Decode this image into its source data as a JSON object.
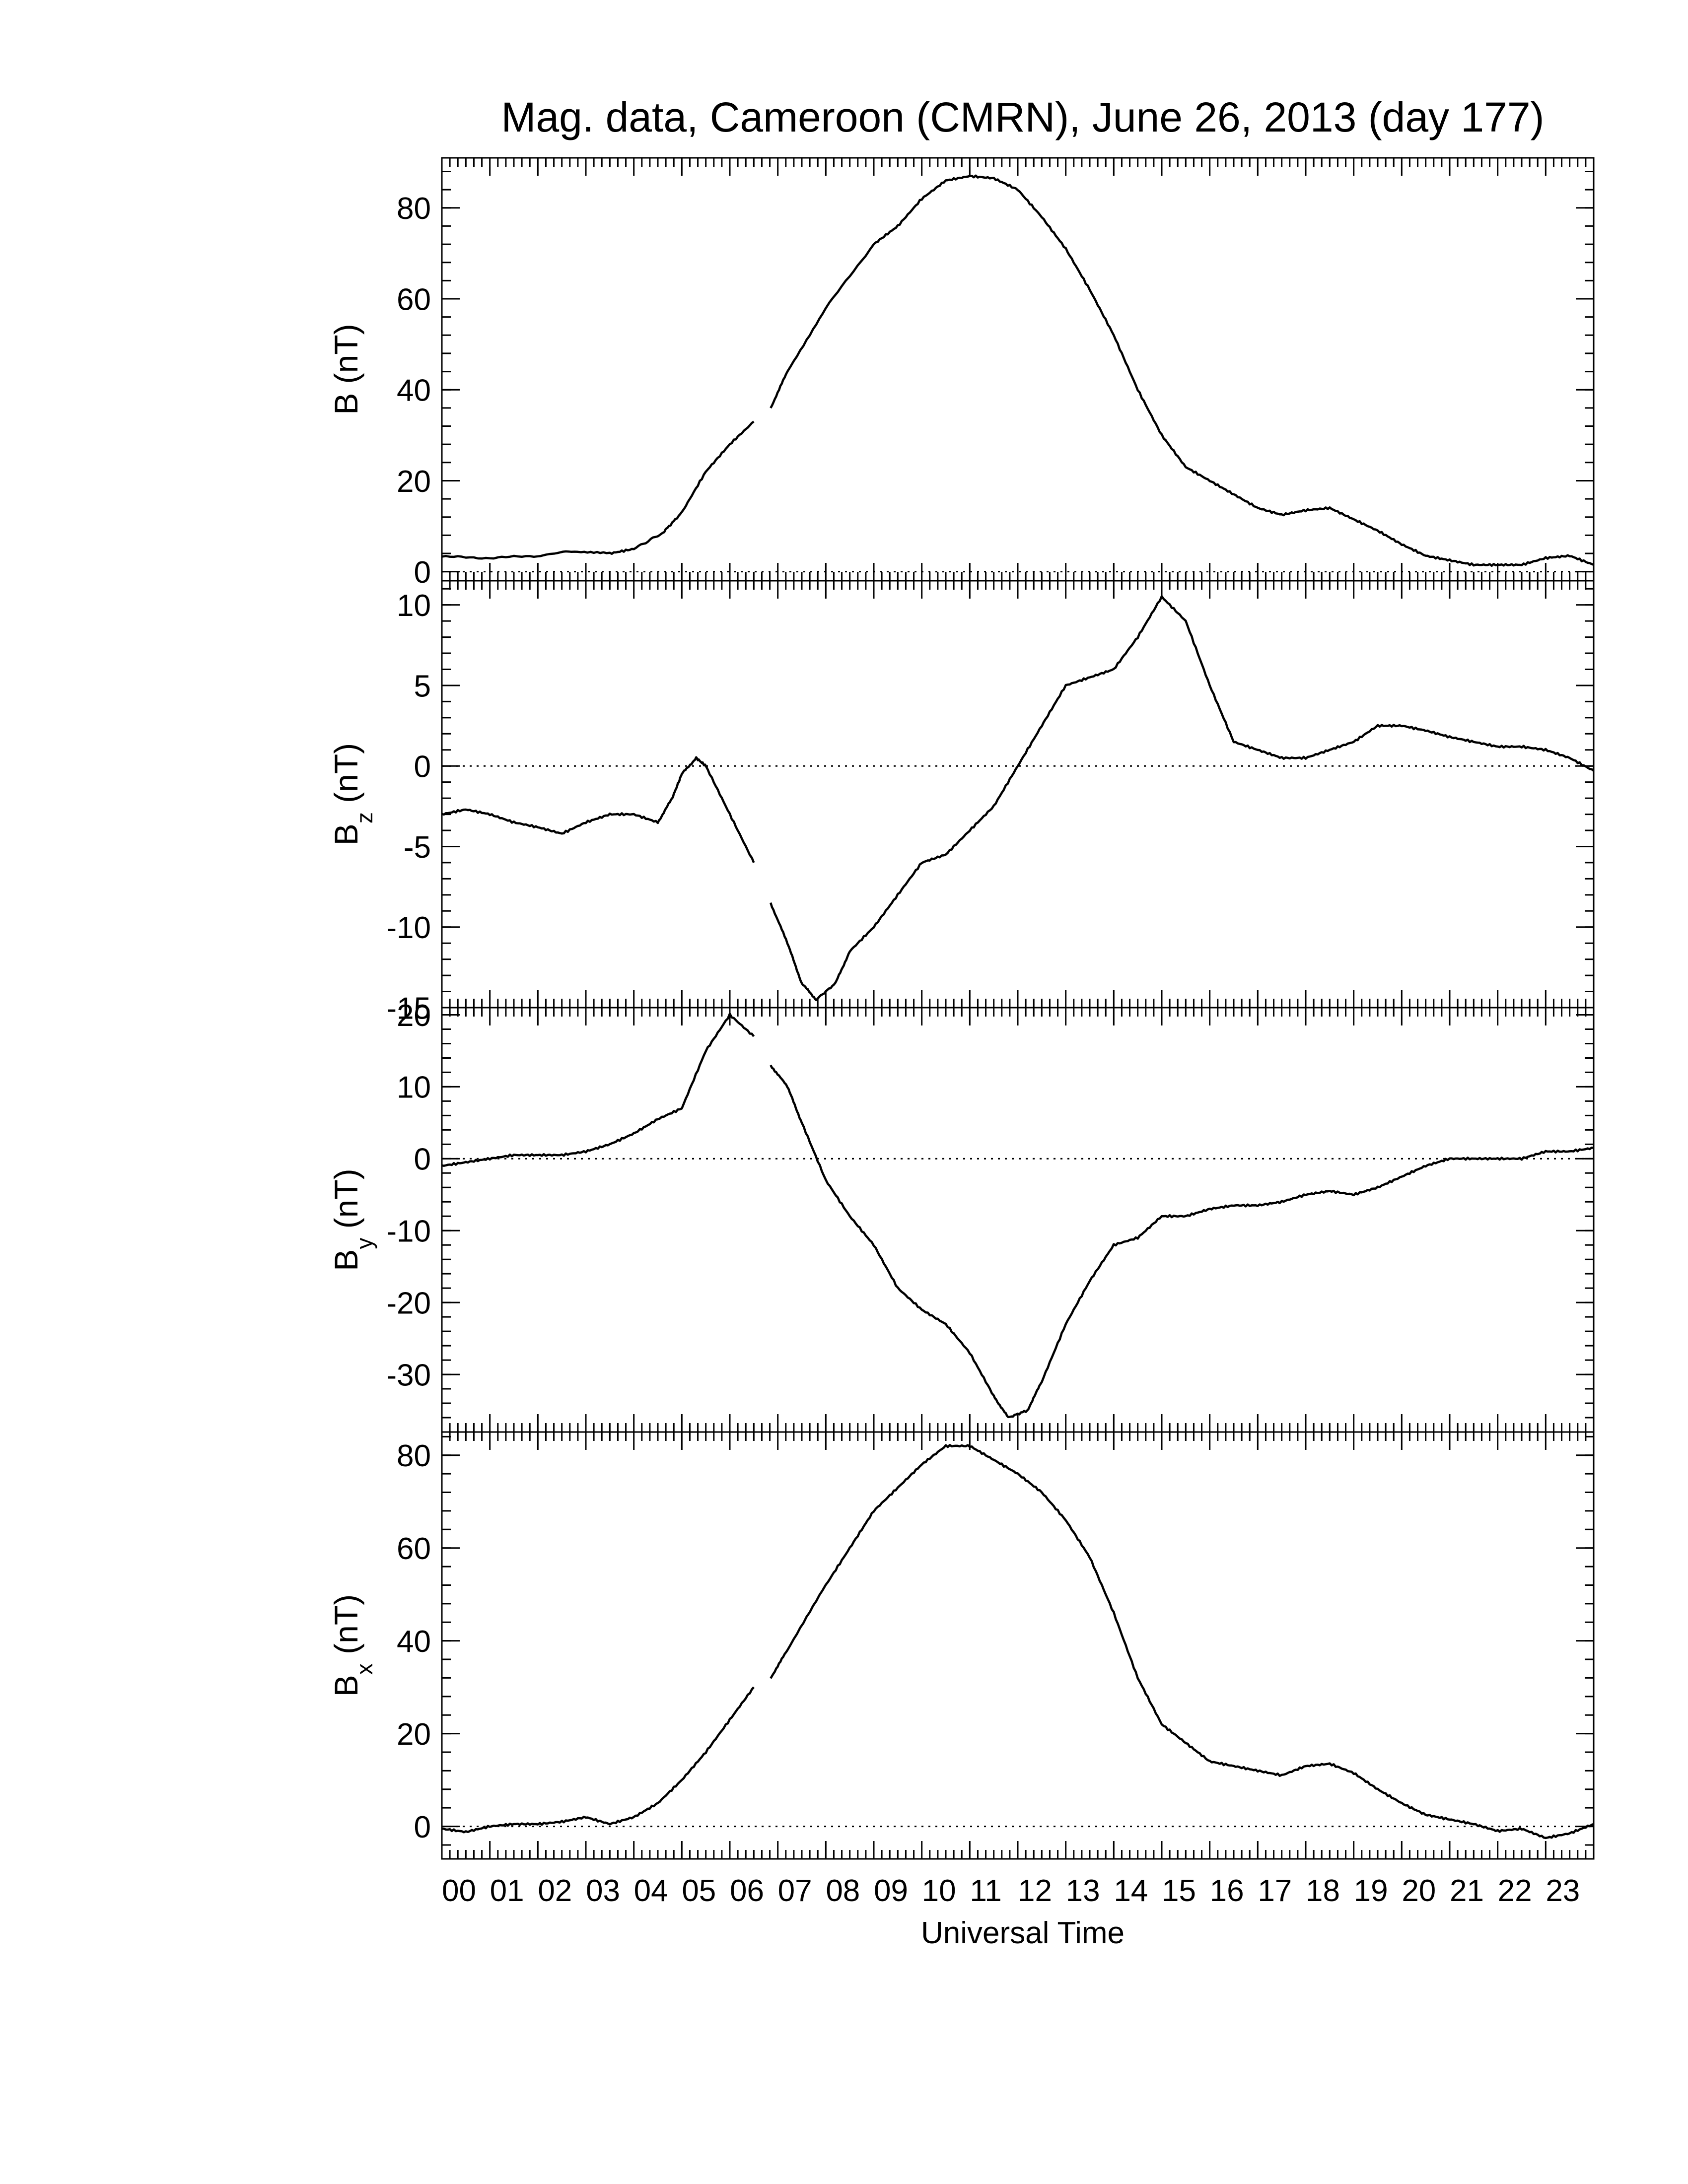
{
  "title": "Mag. data, Cameroon (CMRN), June 26, 2013 (day 177)",
  "xlabel": "Universal Time",
  "x_tick_labels": [
    "00",
    "01",
    "02",
    "03",
    "04",
    "05",
    "06",
    "07",
    "08",
    "09",
    "10",
    "11",
    "12",
    "13",
    "14",
    "15",
    "16",
    "17",
    "18",
    "19",
    "20",
    "21",
    "22",
    "23"
  ],
  "chart_data": [
    {
      "type": "line",
      "panel": "B",
      "ylabel": "B (nT)",
      "ylim": [
        -2,
        91
      ],
      "yticks": [
        0,
        20,
        40,
        60,
        80
      ],
      "ytick_labels": [
        "0",
        "20",
        "40",
        "60",
        "80"
      ],
      "xlim": [
        0,
        24
      ],
      "zero_line": true,
      "gap": [
        6.5,
        6.85
      ],
      "points": [
        [
          0,
          3.3
        ],
        [
          1,
          3
        ],
        [
          2,
          3.5
        ],
        [
          2.7,
          4.5
        ],
        [
          3.5,
          4
        ],
        [
          4,
          5
        ],
        [
          4.6,
          8.5
        ],
        [
          5,
          13
        ],
        [
          5.5,
          22
        ],
        [
          6,
          28
        ],
        [
          6.5,
          33
        ],
        [
          6.85,
          36
        ],
        [
          7.2,
          44
        ],
        [
          8,
          58
        ],
        [
          9,
          72
        ],
        [
          9.5,
          76
        ],
        [
          10,
          82
        ],
        [
          10.5,
          86
        ],
        [
          11,
          87
        ],
        [
          11.5,
          86.5
        ],
        [
          12,
          84
        ],
        [
          12.5,
          78
        ],
        [
          13,
          71
        ],
        [
          13.5,
          62
        ],
        [
          14,
          52
        ],
        [
          14.5,
          40
        ],
        [
          15,
          30
        ],
        [
          15.5,
          23
        ],
        [
          16,
          20
        ],
        [
          16.5,
          17
        ],
        [
          17,
          14
        ],
        [
          17.5,
          12.5
        ],
        [
          18,
          13.5
        ],
        [
          18.5,
          14
        ],
        [
          19,
          11.5
        ],
        [
          19.5,
          9
        ],
        [
          20,
          6
        ],
        [
          20.5,
          3.5
        ],
        [
          21,
          2.5
        ],
        [
          21.5,
          1.5
        ],
        [
          22,
          1.5
        ],
        [
          22.5,
          1.5
        ],
        [
          23,
          3
        ],
        [
          23.5,
          3.5
        ],
        [
          24,
          1.5
        ]
      ]
    },
    {
      "type": "line",
      "panel": "Bz",
      "ylabel": "B",
      "ylabel_sub": "z",
      "ylabel_unit": "(nT)",
      "ylim": [
        -15,
        11.5
      ],
      "yticks": [
        -15,
        -10,
        -5,
        0,
        5,
        10
      ],
      "ytick_labels": [
        "-15",
        "-10",
        "-5",
        "0",
        "5",
        "10"
      ],
      "xlim": [
        0,
        24
      ],
      "zero_line": true,
      "gap": [
        6.5,
        6.85
      ],
      "points": [
        [
          0,
          -3
        ],
        [
          0.5,
          -2.7
        ],
        [
          1,
          -3
        ],
        [
          1.5,
          -3.5
        ],
        [
          2,
          -3.8
        ],
        [
          2.5,
          -4.2
        ],
        [
          3,
          -3.5
        ],
        [
          3.5,
          -3
        ],
        [
          4,
          -3
        ],
        [
          4.5,
          -3.5
        ],
        [
          4.8,
          -2
        ],
        [
          5,
          -0.5
        ],
        [
          5.3,
          0.5
        ],
        [
          5.5,
          0
        ],
        [
          6,
          -3
        ],
        [
          6.5,
          -6
        ],
        [
          6.85,
          -8.5
        ],
        [
          7.2,
          -11
        ],
        [
          7.5,
          -13.5
        ],
        [
          7.8,
          -14.5
        ],
        [
          8.2,
          -13.5
        ],
        [
          8.5,
          -11.5
        ],
        [
          9,
          -10
        ],
        [
          9.5,
          -8
        ],
        [
          10,
          -6
        ],
        [
          10.5,
          -5.5
        ],
        [
          11,
          -4
        ],
        [
          11.5,
          -2.5
        ],
        [
          12,
          0
        ],
        [
          12.5,
          2.5
        ],
        [
          13,
          5
        ],
        [
          13.5,
          5.5
        ],
        [
          14,
          6
        ],
        [
          14.5,
          8
        ],
        [
          15,
          10.5
        ],
        [
          15.5,
          9
        ],
        [
          16,
          5
        ],
        [
          16.5,
          1.5
        ],
        [
          17,
          1
        ],
        [
          17.5,
          0.5
        ],
        [
          18,
          0.5
        ],
        [
          18.5,
          1
        ],
        [
          19,
          1.5
        ],
        [
          19.5,
          2.5
        ],
        [
          20,
          2.5
        ],
        [
          20.5,
          2.2
        ],
        [
          21,
          1.8
        ],
        [
          21.5,
          1.5
        ],
        [
          22,
          1.2
        ],
        [
          22.5,
          1.2
        ],
        [
          23,
          1
        ],
        [
          23.5,
          0.5
        ],
        [
          24,
          -0.3
        ]
      ]
    },
    {
      "type": "line",
      "panel": "By",
      "ylabel": "B",
      "ylabel_sub": "y",
      "ylabel_unit": "(nT)",
      "ylim": [
        -38,
        21
      ],
      "yticks": [
        -30,
        -20,
        -10,
        0,
        10,
        20
      ],
      "ytick_labels": [
        "-30",
        "-20",
        "-10",
        "0",
        "10",
        "20"
      ],
      "xlim": [
        0,
        24
      ],
      "zero_line": true,
      "gap": [
        6.5,
        6.85
      ],
      "points": [
        [
          0,
          -1
        ],
        [
          0.5,
          -0.5
        ],
        [
          1,
          0
        ],
        [
          1.5,
          0.5
        ],
        [
          2,
          0.5
        ],
        [
          2.5,
          0.5
        ],
        [
          3,
          1
        ],
        [
          3.5,
          2
        ],
        [
          4,
          3.5
        ],
        [
          4.5,
          5.5
        ],
        [
          5,
          7
        ],
        [
          5.5,
          15
        ],
        [
          6,
          20
        ],
        [
          6.5,
          17
        ],
        [
          6.85,
          13
        ],
        [
          7.2,
          10
        ],
        [
          7.5,
          5
        ],
        [
          8,
          -3
        ],
        [
          8.5,
          -8
        ],
        [
          9,
          -12
        ],
        [
          9.5,
          -18
        ],
        [
          10,
          -21
        ],
        [
          10.5,
          -23
        ],
        [
          11,
          -27
        ],
        [
          11.5,
          -33
        ],
        [
          11.8,
          -36
        ],
        [
          12.2,
          -35
        ],
        [
          12.5,
          -31
        ],
        [
          13,
          -23
        ],
        [
          13.5,
          -17
        ],
        [
          14,
          -12
        ],
        [
          14.5,
          -11
        ],
        [
          15,
          -8
        ],
        [
          15.5,
          -8
        ],
        [
          16,
          -7
        ],
        [
          16.5,
          -6.5
        ],
        [
          17,
          -6.5
        ],
        [
          17.5,
          -6
        ],
        [
          18,
          -5
        ],
        [
          18.5,
          -4.5
        ],
        [
          19,
          -5
        ],
        [
          19.5,
          -4
        ],
        [
          20,
          -2.5
        ],
        [
          20.5,
          -1
        ],
        [
          21,
          0
        ],
        [
          21.5,
          0
        ],
        [
          22,
          0
        ],
        [
          22.5,
          0
        ],
        [
          23,
          1
        ],
        [
          23.5,
          1
        ],
        [
          24,
          1.5
        ]
      ]
    },
    {
      "type": "line",
      "panel": "Bx",
      "ylabel": "B",
      "ylabel_sub": "x",
      "ylabel_unit": "(nT)",
      "ylim": [
        -7,
        85
      ],
      "yticks": [
        0,
        20,
        40,
        60,
        80
      ],
      "ytick_labels": [
        "0",
        "20",
        "40",
        "60",
        "80"
      ],
      "xlim": [
        0,
        24
      ],
      "zero_line": true,
      "gap": [
        6.5,
        6.85
      ],
      "points": [
        [
          0,
          -0.5
        ],
        [
          0.5,
          -1.2
        ],
        [
          1,
          0
        ],
        [
          1.5,
          0.5
        ],
        [
          2,
          0.5
        ],
        [
          2.5,
          1
        ],
        [
          3,
          2
        ],
        [
          3.5,
          0.5
        ],
        [
          4,
          2
        ],
        [
          4.5,
          5
        ],
        [
          5,
          10
        ],
        [
          5.5,
          16
        ],
        [
          6,
          23
        ],
        [
          6.5,
          30
        ],
        [
          6.85,
          32
        ],
        [
          7.2,
          38
        ],
        [
          8,
          52
        ],
        [
          8.5,
          60
        ],
        [
          9,
          68
        ],
        [
          9.5,
          73
        ],
        [
          10,
          78
        ],
        [
          10.5,
          82
        ],
        [
          11,
          82
        ],
        [
          11.5,
          79
        ],
        [
          12,
          76
        ],
        [
          12.5,
          72
        ],
        [
          13,
          66
        ],
        [
          13.5,
          58
        ],
        [
          14,
          46
        ],
        [
          14.5,
          32
        ],
        [
          15,
          22
        ],
        [
          15.5,
          18
        ],
        [
          16,
          14
        ],
        [
          16.5,
          13
        ],
        [
          17,
          12
        ],
        [
          17.5,
          11
        ],
        [
          18,
          13
        ],
        [
          18.5,
          13.5
        ],
        [
          19,
          11.5
        ],
        [
          19.5,
          8
        ],
        [
          20,
          5
        ],
        [
          20.5,
          2.5
        ],
        [
          21,
          1.5
        ],
        [
          21.5,
          0.5
        ],
        [
          22,
          -1
        ],
        [
          22.5,
          -0.5
        ],
        [
          23,
          -2.5
        ],
        [
          23.5,
          -1.5
        ],
        [
          24,
          0.5
        ]
      ]
    }
  ]
}
